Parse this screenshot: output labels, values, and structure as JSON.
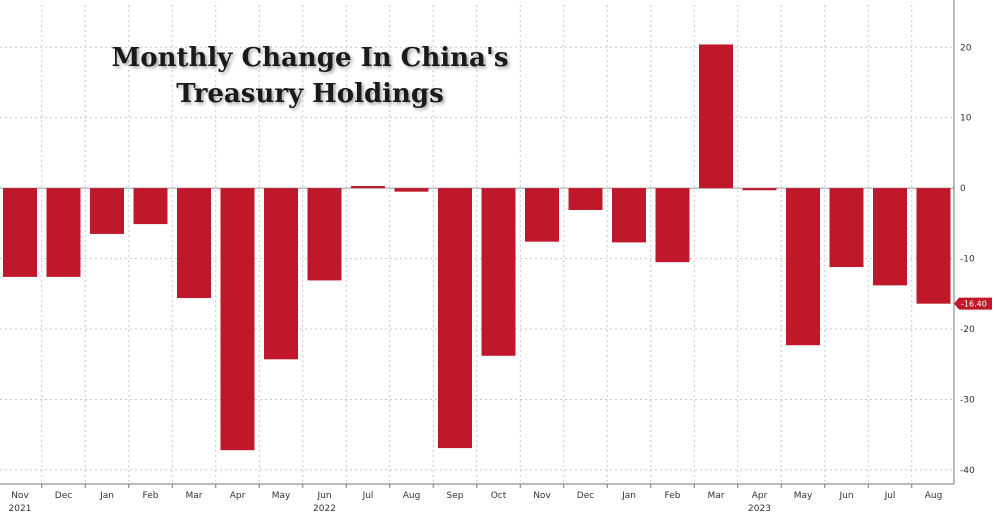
{
  "chart_data": {
    "type": "bar",
    "title": "Monthly Change In China's Treasury Holdings",
    "title_lines": [
      "Monthly Change In China's",
      "Treasury Holdings"
    ],
    "categories": [
      "Nov",
      "Dec",
      "Jan",
      "Feb",
      "Mar",
      "Apr",
      "May",
      "Jun",
      "Jul",
      "Aug",
      "Sep",
      "Oct",
      "Nov",
      "Dec",
      "Jan",
      "Feb",
      "Mar",
      "Apr",
      "May",
      "Jun",
      "Jul",
      "Aug"
    ],
    "year_labels": [
      {
        "index": 0,
        "label": "2021"
      },
      {
        "index": 7,
        "label": "2022"
      },
      {
        "index": 17,
        "label": "2023"
      }
    ],
    "values": [
      -12.6,
      -12.6,
      -6.5,
      -5.1,
      -15.6,
      -37.2,
      -24.3,
      -13.1,
      0.3,
      -0.5,
      -36.9,
      -23.8,
      -7.6,
      -3.1,
      -7.7,
      -10.5,
      20.4,
      -0.3,
      -22.3,
      -11.2,
      -13.8,
      -16.4
    ],
    "color": "#c0182b",
    "ylim": [
      -42,
      26
    ],
    "yticks": [
      20,
      10,
      0,
      -10,
      -20,
      -30,
      -40
    ],
    "grid": true,
    "last_value_label": "-16.40",
    "last_value_color": "#c0182b",
    "xlabel": "",
    "ylabel": ""
  }
}
